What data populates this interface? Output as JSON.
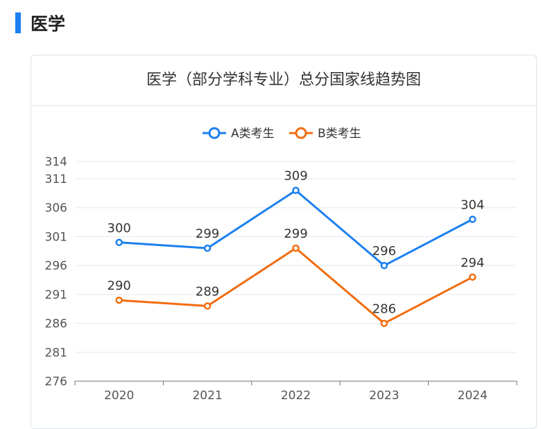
{
  "section": {
    "title": "医学"
  },
  "chart_data": {
    "type": "line",
    "title": "医学（部分学科专业）总分国家线趋势图",
    "categories": [
      "2020",
      "2021",
      "2022",
      "2023",
      "2024"
    ],
    "series": [
      {
        "name": "A类考生",
        "color": "#1a7ff0",
        "values": [
          300,
          299,
          309,
          296,
          304
        ]
      },
      {
        "name": "B类考生",
        "color": "#f26c0f",
        "values": [
          290,
          289,
          299,
          286,
          294
        ]
      }
    ],
    "y_ticks": [
      276,
      281,
      286,
      291,
      296,
      301,
      306,
      311,
      314
    ],
    "ylim": [
      276,
      314
    ],
    "xlabel": "",
    "ylabel": "",
    "legend": "top-center",
    "grid": true
  }
}
